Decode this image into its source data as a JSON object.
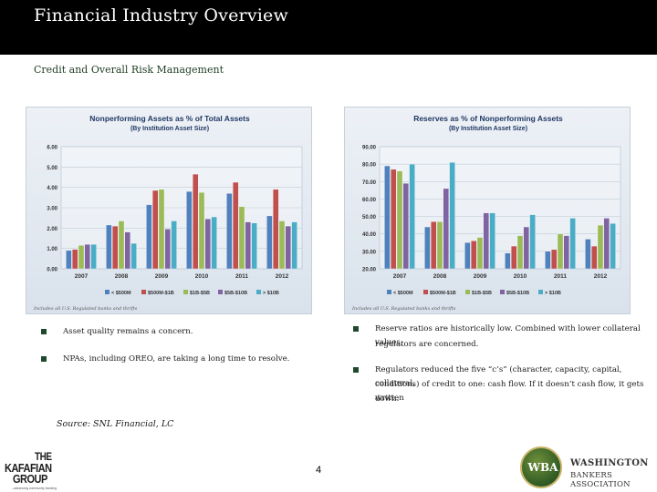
{
  "header": {
    "title": "Financial Industry Overview",
    "subtitle": "Credit and Overall Risk Management"
  },
  "bullets_left": [
    "Asset quality remains a concern.",
    "NPAs, including OREO, are taking a long time to resolve."
  ],
  "bullets_right": [
    [
      "Reserve ratios are historically low. Combined with lower collateral values,",
      "regulators are concerned."
    ],
    [
      "Regulators reduced the five “c’s” (character, capacity, capital, collateral,",
      "conditions) of credit to one: cash flow. If it doesn’t cash flow, it gets written",
      "down."
    ]
  ],
  "footer": {
    "source": "Source: SNL Financial, LC",
    "page_number": "4",
    "left_logo": {
      "line1": "THE",
      "line2": "KAFAFIAN",
      "line3": "GROUP",
      "tagline": "...advancing community banking"
    },
    "right_logo": {
      "mark": "WBA",
      "line1": "WASHINGTON",
      "line2": "BANKERS ASSOCIATION"
    }
  },
  "chart_data": [
    {
      "type": "bar",
      "title": "Nonperforming Assets as % of Total Assets",
      "subtitle": "(By Institution Asset Size)",
      "categories": [
        "2007",
        "2008",
        "2009",
        "2010",
        "2011",
        "2012"
      ],
      "ylim": [
        0,
        6
      ],
      "yticks": [
        "0.00",
        "1.00",
        "2.00",
        "3.00",
        "4.00",
        "5.00",
        "6.00"
      ],
      "note": "Includes all U.S. Regulated banks and thrifts",
      "legend_position": "bottom",
      "series": [
        {
          "name": "< $500M",
          "color": "#4f81bd",
          "values": [
            0.9,
            2.15,
            3.15,
            3.8,
            3.7,
            2.6
          ]
        },
        {
          "name": "$500M-$1B",
          "color": "#c0504d",
          "values": [
            0.95,
            2.1,
            3.85,
            4.65,
            4.25,
            3.9
          ]
        },
        {
          "name": "$1B-$5B",
          "color": "#9bbb59",
          "values": [
            1.15,
            2.35,
            3.9,
            3.75,
            3.05,
            2.35
          ]
        },
        {
          "name": "$5B-$10B",
          "color": "#8064a2",
          "values": [
            1.2,
            1.8,
            1.95,
            2.45,
            2.3,
            2.1
          ]
        },
        {
          "name": "> $10B",
          "color": "#4bacc6",
          "values": [
            1.2,
            1.25,
            2.35,
            2.55,
            2.25,
            2.3
          ]
        }
      ]
    },
    {
      "type": "bar",
      "title": "Reserves as % of Nonperforming Assets",
      "subtitle": "(By Institution Asset Size)",
      "categories": [
        "2007",
        "2008",
        "2009",
        "2010",
        "2011",
        "2012"
      ],
      "ylim": [
        20,
        90
      ],
      "yticks": [
        "20.00",
        "30.00",
        "40.00",
        "50.00",
        "60.00",
        "70.00",
        "80.00",
        "90.00"
      ],
      "note": "Includes all U.S. Regulated banks and thrifts",
      "legend_position": "bottom",
      "series": [
        {
          "name": "< $500M",
          "color": "#4f81bd",
          "values": [
            79,
            44,
            35,
            29,
            30,
            37
          ]
        },
        {
          "name": "$500M-$1B",
          "color": "#c0504d",
          "values": [
            77,
            47,
            36,
            33,
            31,
            33
          ]
        },
        {
          "name": "$1B-$5B",
          "color": "#9bbb59",
          "values": [
            76,
            47,
            38,
            39,
            40,
            45
          ]
        },
        {
          "name": "$5B-$10B",
          "color": "#8064a2",
          "values": [
            69,
            66,
            52,
            44,
            39,
            49
          ]
        },
        {
          "name": "> $10B",
          "color": "#4bacc6",
          "values": [
            80,
            81,
            52,
            51,
            49,
            46
          ]
        }
      ]
    }
  ]
}
